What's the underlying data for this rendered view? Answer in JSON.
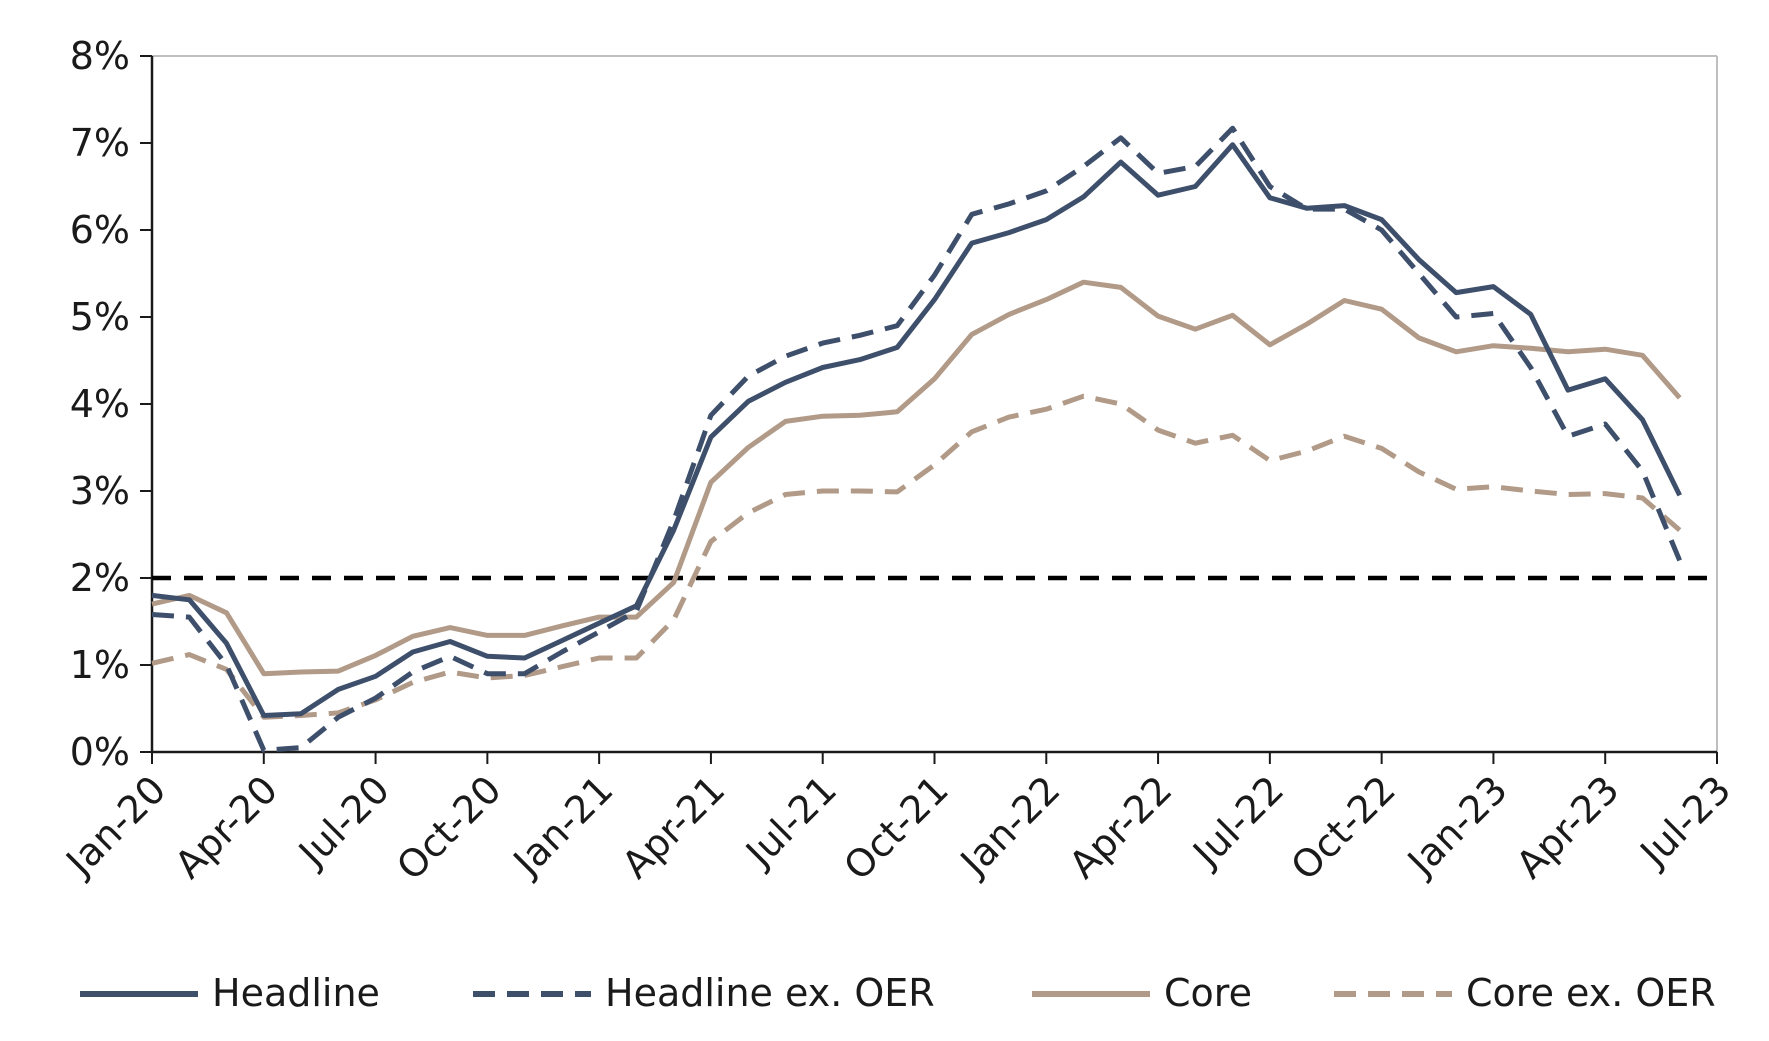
{
  "chart_data": {
    "type": "line",
    "title": "",
    "xlabel": "",
    "ylabel": "",
    "ylim": [
      0,
      8
    ],
    "y_ticks": [
      "0%",
      "1%",
      "2%",
      "3%",
      "4%",
      "5%",
      "6%",
      "7%",
      "8%"
    ],
    "x_ticks": [
      "Jan-20",
      "Apr-20",
      "Jul-20",
      "Oct-20",
      "Jan-21",
      "Apr-21",
      "Jul-21",
      "Oct-21",
      "Jan-22",
      "Apr-22",
      "Jul-22",
      "Oct-22",
      "Jan-23",
      "Apr-23",
      "Jul-23"
    ],
    "x_start": "Jan-20",
    "x_end": "Jul-23",
    "grid": false,
    "legend_position": "bottom",
    "reference_line": {
      "value": 2,
      "style": "dashed",
      "color": "#000000"
    },
    "series": [
      {
        "name": "Headline",
        "style": "solid",
        "color": "#3d4f6b",
        "values": [
          1.8,
          1.75,
          1.25,
          0.42,
          0.44,
          0.72,
          0.87,
          1.15,
          1.27,
          1.1,
          1.08,
          1.28,
          1.48,
          1.68,
          2.55,
          3.62,
          4.03,
          4.25,
          4.42,
          4.51,
          4.65,
          5.2,
          5.85,
          5.97,
          6.12,
          6.38,
          6.78,
          6.4,
          6.5,
          6.98,
          6.37,
          6.25,
          6.28,
          6.12,
          5.66,
          5.28,
          5.35,
          5.03,
          4.16,
          4.29,
          3.82,
          2.95
        ]
      },
      {
        "name": "Headline ex. OER",
        "style": "dashed",
        "color": "#3d4f6b",
        "values": [
          1.58,
          1.55,
          1.0,
          0.02,
          0.05,
          0.4,
          0.62,
          0.92,
          1.1,
          0.9,
          0.9,
          1.15,
          1.38,
          1.62,
          2.66,
          3.87,
          4.32,
          4.55,
          4.7,
          4.79,
          4.9,
          5.48,
          6.18,
          6.3,
          6.45,
          6.73,
          7.06,
          6.65,
          6.73,
          7.17,
          6.5,
          6.24,
          6.24,
          6.0,
          5.5,
          5.0,
          5.04,
          4.42,
          3.63,
          3.77,
          3.23,
          2.2
        ]
      },
      {
        "name": "Core",
        "style": "solid",
        "color": "#b19a87",
        "values": [
          1.7,
          1.8,
          1.6,
          0.9,
          0.92,
          0.93,
          1.11,
          1.33,
          1.43,
          1.34,
          1.34,
          1.45,
          1.55,
          1.55,
          1.95,
          3.1,
          3.5,
          3.8,
          3.86,
          3.87,
          3.91,
          4.29,
          4.8,
          5.03,
          5.2,
          5.4,
          5.34,
          5.01,
          4.86,
          5.02,
          4.68,
          4.92,
          5.19,
          5.09,
          4.76,
          4.6,
          4.67,
          4.64,
          4.6,
          4.63,
          4.56,
          4.07
        ]
      },
      {
        "name": "Core ex. OER",
        "style": "dashed",
        "color": "#b19a87",
        "values": [
          1.02,
          1.12,
          0.95,
          0.4,
          0.42,
          0.45,
          0.6,
          0.8,
          0.92,
          0.85,
          0.88,
          0.98,
          1.08,
          1.08,
          1.52,
          2.42,
          2.75,
          2.96,
          3.0,
          3.0,
          2.99,
          3.3,
          3.68,
          3.85,
          3.94,
          4.09,
          4.0,
          3.7,
          3.55,
          3.64,
          3.35,
          3.46,
          3.63,
          3.49,
          3.22,
          3.02,
          3.05,
          3.0,
          2.96,
          2.97,
          2.92,
          2.55
        ]
      }
    ]
  }
}
